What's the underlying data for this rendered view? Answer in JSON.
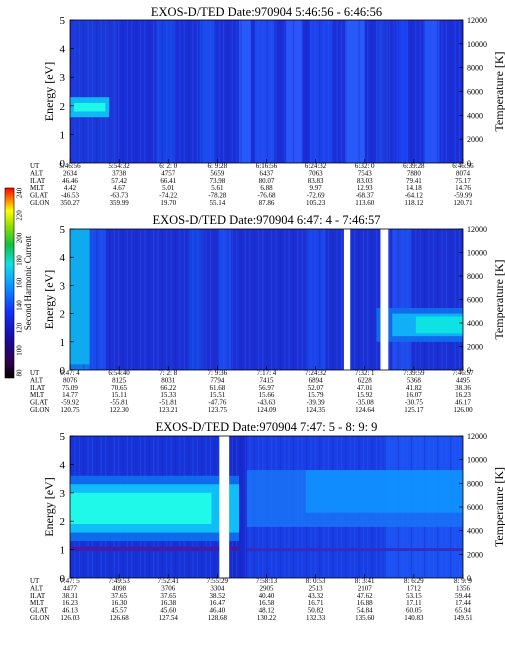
{
  "colorbar": {
    "label": "Second Harmonic Current",
    "ticks": [
      "240",
      "220",
      "200",
      "180",
      "160",
      "140",
      "120",
      "100",
      "80"
    ]
  },
  "chart_data": [
    {
      "type": "heatmap",
      "title": "EXOS-D/TED   Date:970904  5:46:56 - 6:46:56",
      "ylabel": "Energy [eV]",
      "y2label": "Temperature [K]",
      "ylim": [
        0,
        5
      ],
      "y2lim": [
        0,
        12000
      ],
      "yticks": [
        "0",
        "1",
        "2",
        "3",
        "4",
        "5"
      ],
      "y2ticks": [
        "0",
        "2000",
        "4000",
        "6000",
        "8000",
        "10000",
        "12000"
      ],
      "row_labels": [
        "UT",
        "ALT",
        "ILAT",
        "MLT",
        "GLAT",
        "GLON"
      ],
      "columns": [
        [
          "5:46:56",
          "2634",
          "46.46",
          "4.42",
          "-46.53",
          "350.27"
        ],
        [
          "5:54:32",
          "3738",
          "57.42",
          "4.67",
          "-63.73",
          "359.99"
        ],
        [
          "6: 2: 0",
          "4757",
          "66.41",
          "5.01",
          "-74.22",
          "19.70"
        ],
        [
          "6: 9:28",
          "5659",
          "73.98",
          "5.61",
          "-78.28",
          "55.14"
        ],
        [
          "6:16:56",
          "6437",
          "80.07",
          "6.88",
          "-76.68",
          "87.86"
        ],
        [
          "6:24:32",
          "7063",
          "83.83",
          "9.97",
          "-72.69",
          "105.23"
        ],
        [
          "6:32: 0",
          "7543",
          "83.03",
          "12.93",
          "-68.37",
          "113.60"
        ],
        [
          "6:39:28",
          "7880",
          "79.41",
          "14.18",
          "-64.12",
          "118.12"
        ],
        [
          "6:46:56",
          "8074",
          "75.17",
          "14.76",
          "-59.99",
          "120.71"
        ]
      ]
    },
    {
      "type": "heatmap",
      "title": "EXOS-D/TED   Date:970904  6:47: 4 - 7:46:57",
      "ylabel": "Energy [eV]",
      "y2label": "Temperature [K]",
      "ylim": [
        0,
        5
      ],
      "y2lim": [
        0,
        12000
      ],
      "yticks": [
        "0",
        "1",
        "2",
        "3",
        "4",
        "5"
      ],
      "y2ticks": [
        "0",
        "2000",
        "4000",
        "6000",
        "8000",
        "10000",
        "12000"
      ],
      "row_labels": [
        "UT",
        "ALT",
        "ILAT",
        "MLT",
        "GLAT",
        "GLON"
      ],
      "columns": [
        [
          "6:47: 4",
          "8076",
          "75.09",
          "14.77",
          "-59.92",
          "120.75"
        ],
        [
          "6:54:40",
          "8125",
          "70.65",
          "15.11",
          "-55.81",
          "122.30"
        ],
        [
          "7: 2: 8",
          "8031",
          "66.22",
          "15.33",
          "-51.81",
          "123.21"
        ],
        [
          "7: 9:36",
          "7794",
          "61.68",
          "15.51",
          "-47.76",
          "123.75"
        ],
        [
          "7:17: 4",
          "7415",
          "56.97",
          "15.66",
          "-43.63",
          "124.09"
        ],
        [
          "7:24:32",
          "6894",
          "52.07",
          "15.79",
          "-39.39",
          "124.35"
        ],
        [
          "7:32: 1",
          "6228",
          "47.01",
          "15.92",
          "-35.08",
          "124.64"
        ],
        [
          "7:39:59",
          "5368",
          "41.82",
          "16.07",
          "-30.75",
          "125.17"
        ],
        [
          "7:46:57",
          "4495",
          "38.36",
          "16.23",
          "46.17",
          "126.00"
        ]
      ]
    },
    {
      "type": "heatmap",
      "title": "EXOS-D/TED   Date:970904  7:47: 5 - 8: 9: 9",
      "ylabel": "Energy [eV]",
      "y2label": "Temperature [K]",
      "ylim": [
        0,
        5
      ],
      "y2lim": [
        0,
        12000
      ],
      "yticks": [
        "0",
        "1",
        "2",
        "3",
        "4",
        "5"
      ],
      "y2ticks": [
        "0",
        "2000",
        "4000",
        "6000",
        "8000",
        "10000",
        "12000"
      ],
      "row_labels": [
        "UT",
        "ALT",
        "ILAT",
        "MLT",
        "GLAT",
        "GLON"
      ],
      "columns": [
        [
          "7:47: 5",
          "4477",
          "38.31",
          "16.23",
          "46.13",
          "126.03"
        ],
        [
          "7:49:53",
          "4098",
          "37.65",
          "16.30",
          "45.57",
          "126.68"
        ],
        [
          "7:52:41",
          "3706",
          "37.65",
          "16.38",
          "45.60",
          "127.54"
        ],
        [
          "7:55:29",
          "3304",
          "38.52",
          "16.47",
          "46.40",
          "128.68"
        ],
        [
          "7:58:13",
          "2905",
          "40.40",
          "16.58",
          "48.12",
          "130.22"
        ],
        [
          "8: 0:53",
          "2513",
          "43.32",
          "16.71",
          "50.82",
          "132.33"
        ],
        [
          "8: 3:41",
          "2107",
          "47.62",
          "16.88",
          "54.84",
          "135.60"
        ],
        [
          "8: 6:29",
          "1712",
          "53.15",
          "17.11",
          "60.05",
          "140.83"
        ],
        [
          "8: 9: 9",
          "1356",
          "59.44",
          "17.44",
          "65.94",
          "149.51"
        ]
      ]
    }
  ]
}
